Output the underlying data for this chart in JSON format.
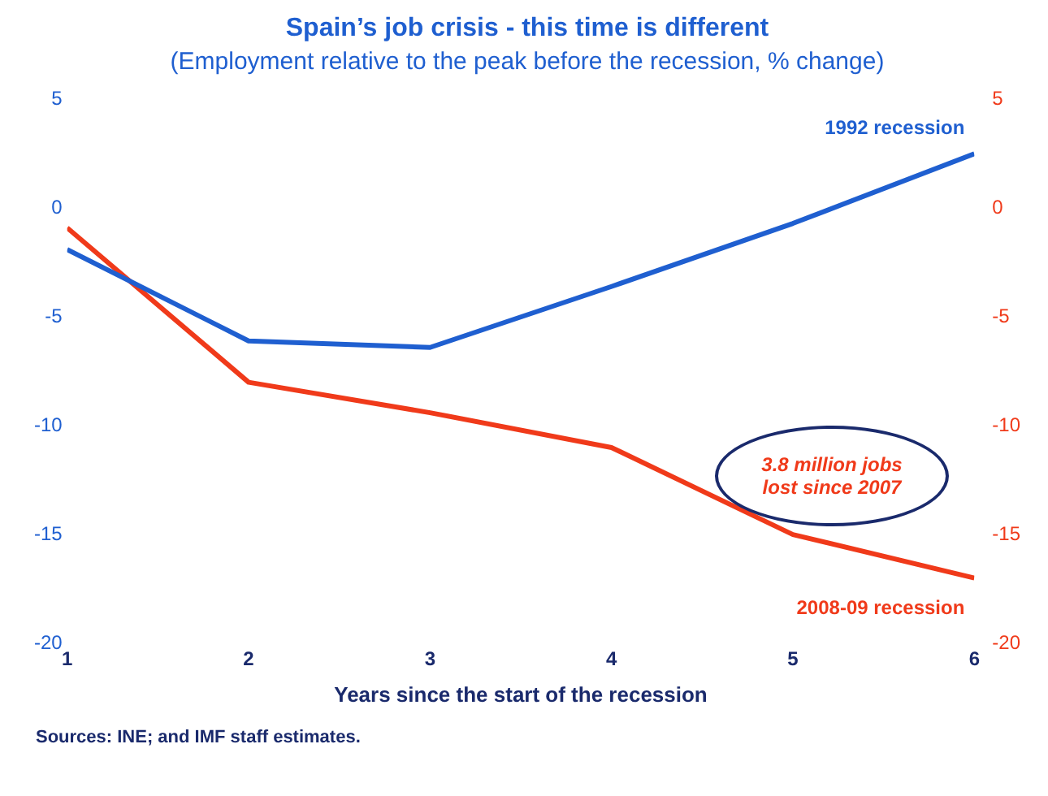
{
  "chart_data": {
    "type": "line",
    "title": "Spain’s job crisis - this time is different",
    "subtitle": "(Employment relative to the peak before the recession, % change)",
    "xlabel": "Years since the start of the recession",
    "x": [
      1,
      2,
      3,
      4,
      5,
      6
    ],
    "xlim": [
      1,
      6
    ],
    "xticks": [
      1,
      2,
      3,
      4,
      5,
      6
    ],
    "ylim": [
      -20,
      5
    ],
    "yticks": [
      5,
      0,
      -5,
      -10,
      -15,
      -20
    ],
    "y2lim": [
      -20,
      5
    ],
    "y2ticks": [
      5,
      0,
      -5,
      -10,
      -15,
      -20
    ],
    "series": [
      {
        "name": "1992 recession",
        "color": "#1f5fd0",
        "values": [
          -1.9,
          -6.1,
          -6.4,
          -3.6,
          -0.7,
          2.5
        ]
      },
      {
        "name": "2008-09 recession",
        "color": "#f03a1a",
        "values": [
          -0.9,
          -8,
          -9.4,
          -11,
          -15,
          -17
        ],
        "axis": "y2"
      }
    ],
    "annotations": [
      "3.8 million jobs lost since 2007",
      "Sources: INE; and IMF staff estimates."
    ],
    "grid": false,
    "legend": false,
    "marker": "none",
    "line_style": "solid"
  }
}
